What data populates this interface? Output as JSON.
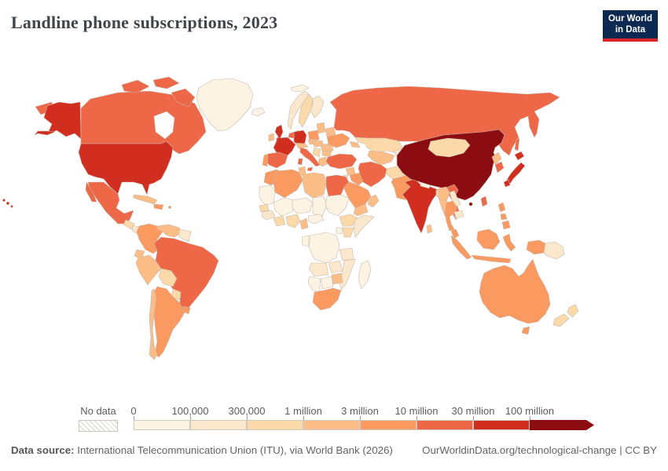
{
  "header": {
    "title": "Landline phone subscriptions, 2023",
    "logo": {
      "line1": "Our World",
      "line2": "in Data",
      "bg_color": "#0c2a51",
      "accent_color": "#dc2626"
    }
  },
  "chart_data": {
    "type": "heatmap",
    "subtype": "world-choropleth-map",
    "title": "Landline phone subscriptions, 2023",
    "year": "2023",
    "legend": {
      "position": "bottom",
      "no_data_label": "No data",
      "tick_labels": [
        "0",
        "100,000",
        "300,000",
        "1 million",
        "3 million",
        "10 million",
        "30 million",
        "100 million"
      ],
      "bin_colors": [
        "#fdf3e3",
        "#fbe7cc",
        "#fcd9a9",
        "#fcbd87",
        "#fb9a60",
        "#ee6848",
        "#d22e20",
        "#8b0d12"
      ],
      "no_data_pattern": "gray-diagonal-hatch"
    },
    "bins_meaning": "index into bin_colors; 0=0-100k, 1=100k-300k, 2=300k-1M, 3=1M-3M, 4=3M-10M, 5=10M-30M, 6=30M-100M, 7=100M+",
    "countries": {
      "greenland": 0,
      "canada": 5,
      "alaska": 6,
      "aleutians": 6,
      "russia-wrap": 5,
      "usa": 6,
      "hawaii": 6,
      "mexico": 5,
      "guatemala": 2,
      "honduras-nicaragua": 1,
      "costa-rica-panama": 4,
      "cuba": 3,
      "hispaniola": 4,
      "puerto-rico": 4,
      "colombia": 4,
      "venezuela": 3,
      "guianas": 1,
      "ecuador": 3,
      "peru": 3,
      "brazil": 5,
      "bolivia": 2,
      "paraguay": 2,
      "uruguay": 4,
      "argentina": 4,
      "chile": 3,
      "iceland": 0,
      "svalbard": 0,
      "uk": 6,
      "ireland": 3,
      "norway": 1,
      "sweden": 2,
      "finland": 1,
      "denmark": 5,
      "baltics": 3,
      "belarus": 3,
      "poland": 4,
      "germany": 6,
      "benelux": 5,
      "france": 6,
      "spain": 5,
      "portugal": 4,
      "alps": 3,
      "czechia": 3,
      "italy": 5,
      "hungary": 3,
      "romania": 3,
      "bulgaria": 3,
      "balkans": 2,
      "greece": 3,
      "ukraine": 4,
      "russia": 5,
      "kazakhstan": 2,
      "uzbek-turkmen": 3,
      "kyrgyz-tajik": 1,
      "caucasus": 3,
      "turkey": 5,
      "syria": 3,
      "iraq": 4,
      "iran": 5,
      "saudi-arabia": 4,
      "yemen": 3,
      "oman": 3,
      "jordan-israel": 1,
      "afghanistan": 2,
      "pakistan": 4,
      "india": 6,
      "nepal": 0,
      "bangladesh": 2,
      "sri-lanka": 3,
      "china": 7,
      "hainan": 7,
      "mongolia": 2,
      "taiwan": 5,
      "north-korea": 3,
      "south-korea": 5,
      "japan": 6,
      "vietnam": 5,
      "laos": 1,
      "myanmar": 3,
      "thailand": 4,
      "cambodia": 1,
      "malaysia": 4,
      "indonesia": 4,
      "philippines": 4,
      "papua-new-guinea": 1,
      "morocco": 4,
      "mauritania-wsahara": 0,
      "algeria": 4,
      "tunisia": 3,
      "libya": 3,
      "egypt": 5,
      "mali": 0,
      "niger": 0,
      "chad": 0,
      "sudan": 0,
      "senegal": 2,
      "guinea-region": 1,
      "ivory-ghana": 2,
      "nigeria": 2,
      "cameroon": 3,
      "central-african-rep": 0,
      "ethiopia": 2,
      "somalia": 1,
      "kenya": 2,
      "uganda": 0,
      "drc": 0,
      "gabon-congo": 0,
      "tanzania": 1,
      "angola": 1,
      "zambia": 1,
      "mozambique": 1,
      "zimbabwe": 3,
      "botswana": 0,
      "namibia": 0,
      "south-africa": 4,
      "madagascar": 0,
      "australia": 4,
      "tasmania": 4,
      "new-zealand": 2
    }
  },
  "footer": {
    "source_label": "Data source:",
    "source_text": " International Telecommunication Union (ITU), via World Bank (2026)",
    "right_text": "OurWorldinData.org/technological-change | CC BY"
  }
}
